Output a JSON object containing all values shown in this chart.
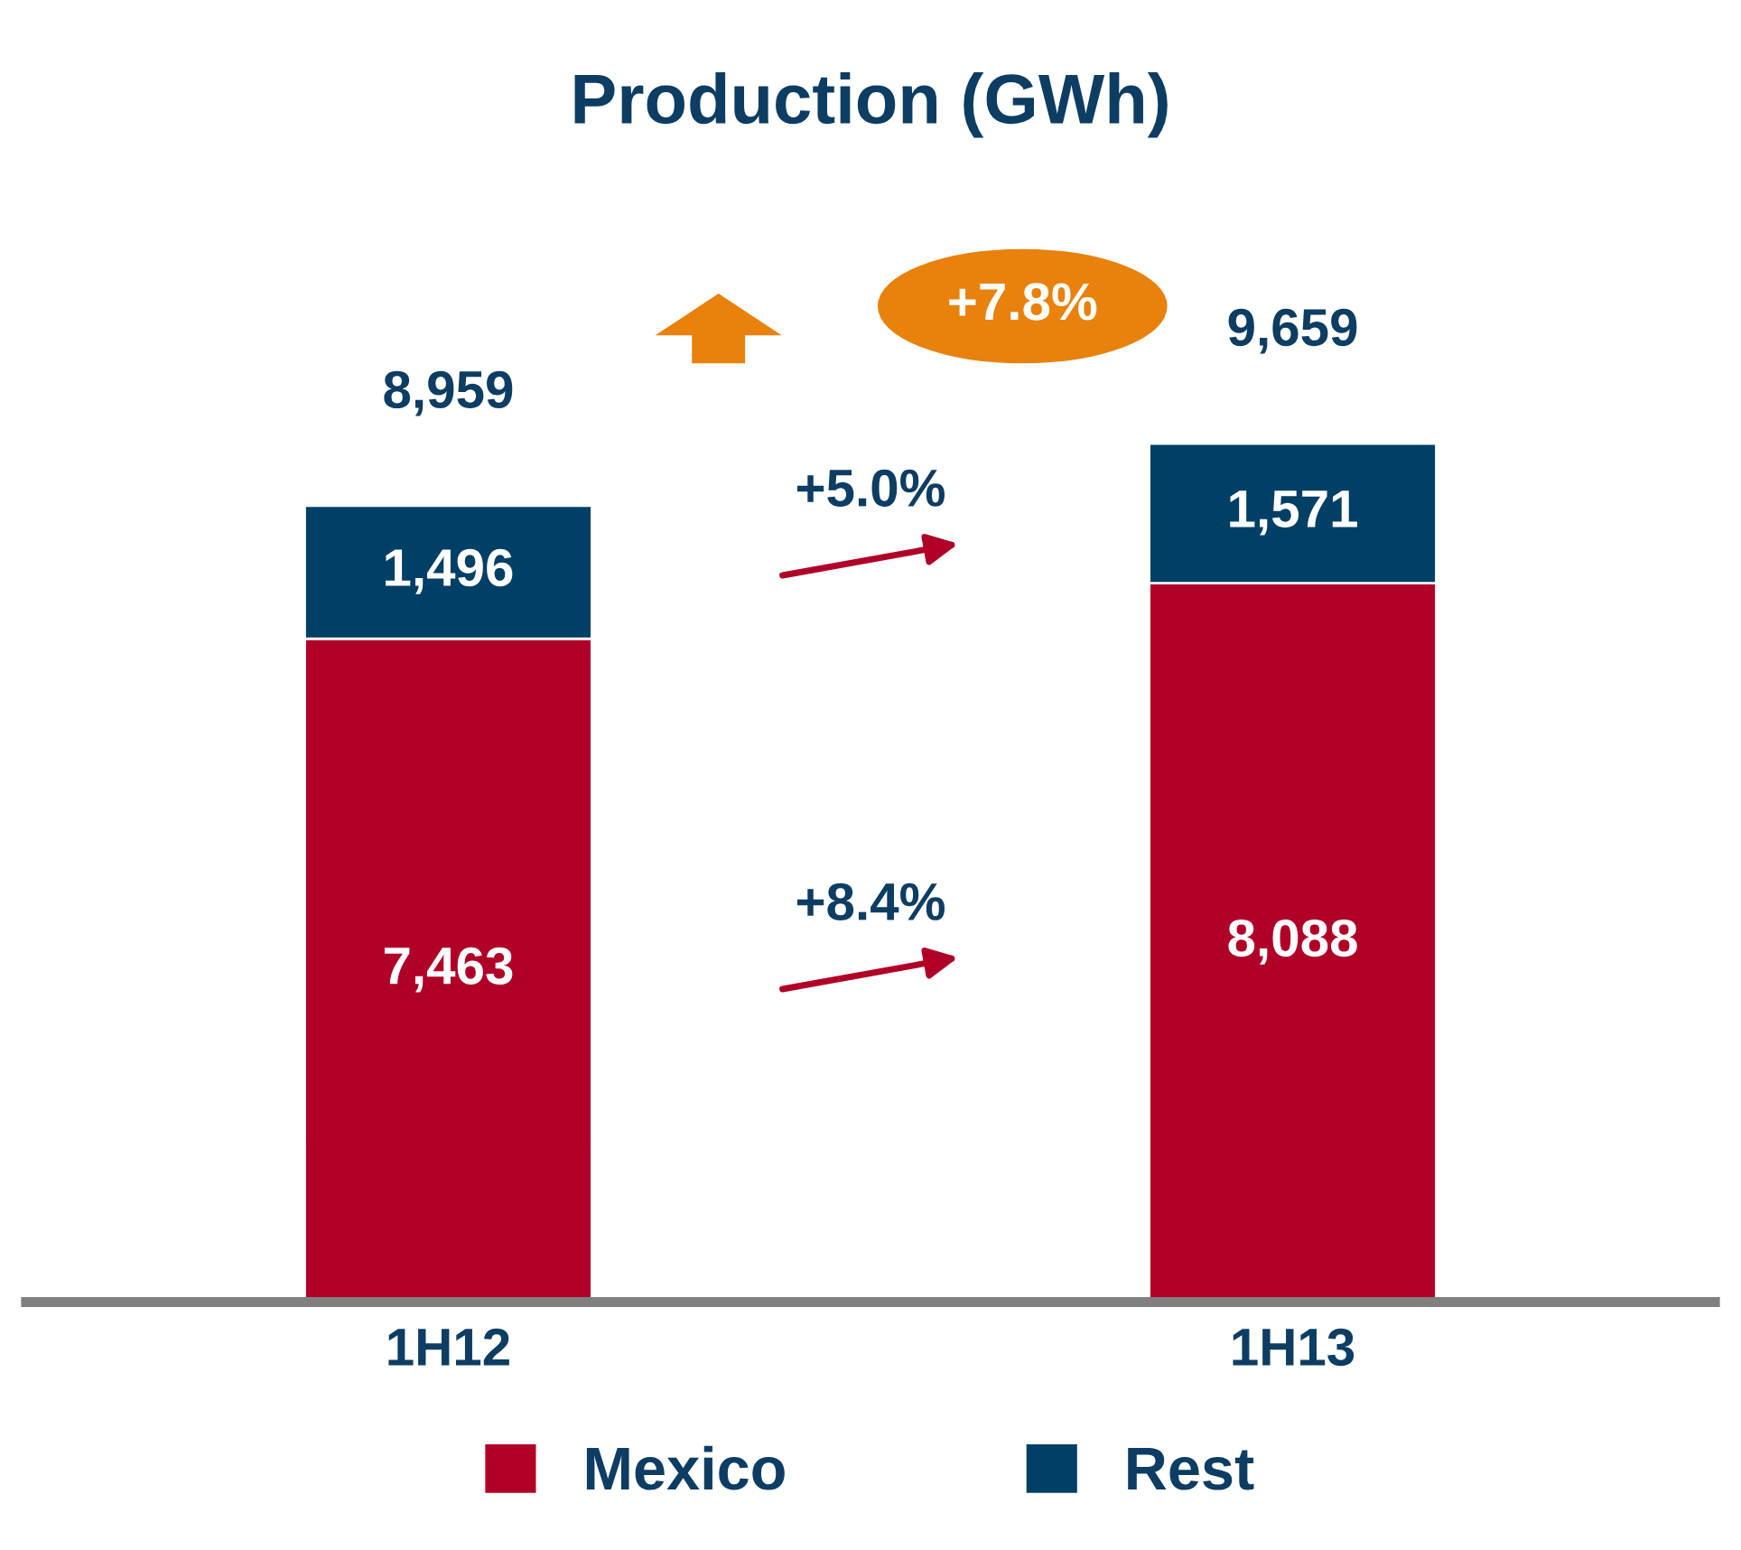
{
  "chart_data": {
    "type": "bar",
    "title": "Production (GWh)",
    "stacked": true,
    "categories": [
      "1H12",
      "1H13"
    ],
    "series": [
      {
        "name": "Mexico",
        "color": "#b00028",
        "values": [
          7463,
          8088
        ],
        "value_labels": [
          "7,463",
          "8,088"
        ]
      },
      {
        "name": "Rest",
        "color": "#003f66",
        "values": [
          1496,
          1571
        ],
        "value_labels": [
          "1,496",
          "1,571"
        ]
      }
    ],
    "totals": [
      "8,959",
      "9,659"
    ],
    "annotations": [
      "+7.8%",
      "+5.0%",
      "+8.4%"
    ],
    "legend": "bottom",
    "tick_labels": "x"
  }
}
